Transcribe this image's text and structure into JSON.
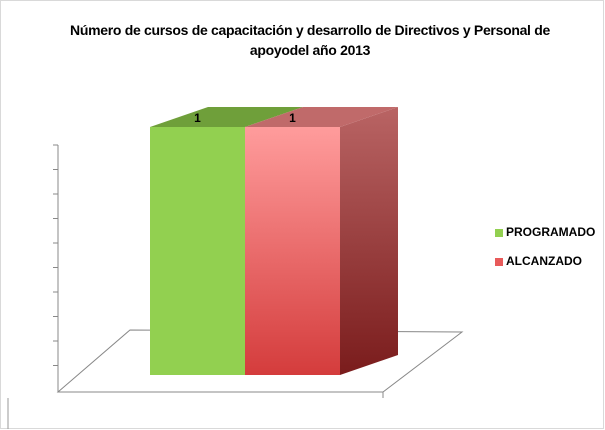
{
  "chart_data": {
    "type": "bar",
    "title": "Número de cursos de capacitación y desarrollo de Directivos y Personal de apoyodel año 2013",
    "categories": [
      null
    ],
    "series": [
      {
        "name": "PROGRAMADO",
        "color": "#92d050",
        "values": [
          1
        ]
      },
      {
        "name": "ALCANZADO",
        "color": "#e85a5a",
        "values": [
          1
        ]
      }
    ],
    "ylim": [
      0,
      1
    ],
    "legend": "right"
  }
}
